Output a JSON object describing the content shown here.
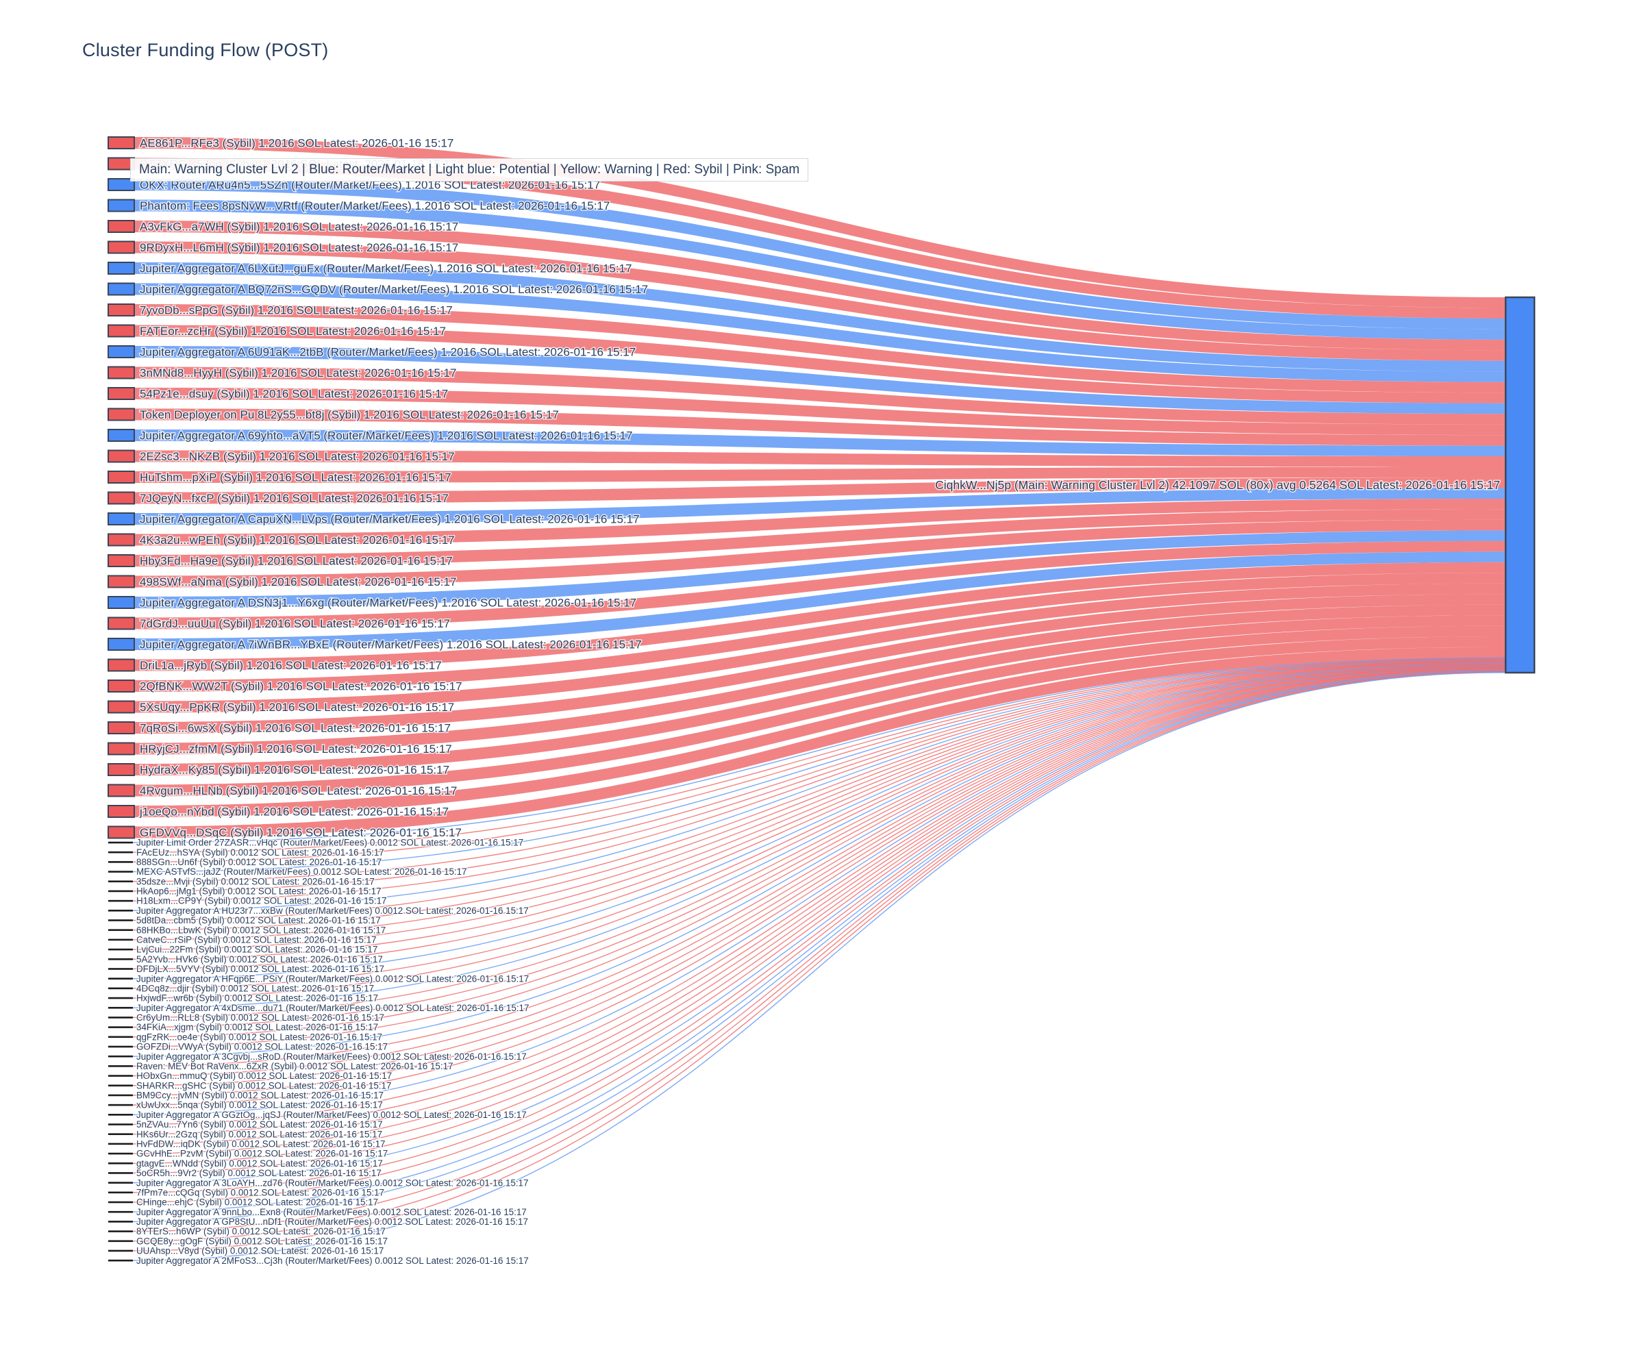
{
  "title": "Cluster Funding Flow (POST)",
  "annotation": "Main: Warning Cluster Lvl 2  |  Blue: Router/Market | Light blue: Potential | Yellow: Warning | Red: Sybil | Pink: Spam",
  "colors": {
    "sybil_node": "#ec5a5c",
    "router_node": "#4a8af4",
    "sybil_link": "rgba(236,90,92,0.75)",
    "router_link": "rgba(74,138,244,0.75)",
    "small_sybil_link": "rgba(240,110,110,0.85)",
    "small_router_link": "rgba(110,160,245,0.9)",
    "node_border": "#3a4556",
    "small_node": "#1c1c1c",
    "text": "#2a3f5f"
  },
  "chart_data": {
    "type": "sankey",
    "unit": "SOL",
    "target": {
      "label": "CiqhkW...Nj5p (Main: Warning Cluster Lvl 2) 42.1097 SOL (80x) avg 0.5264 SOL Latest: 2026-01-16 15:17",
      "total_sol": 42.1097,
      "tx_count": 80,
      "avg_sol": 0.5264
    },
    "sources": [
      {
        "label": "AE861P...RFe3 (Sybil) 1.2016 SOL Latest: 2026-01-16 15:17",
        "type": "sybil",
        "value": 1.2016
      },
      {
        "label": "DT7XRG...5Jqg (Sybil) 1.2016 SOL Latest: 2026-01-16 15:17",
        "type": "sybil",
        "value": 1.2016
      },
      {
        "label": "OKX: Router ARu4n5...5SZn (Router/Market/Fees) 1.2016 SOL Latest: 2026-01-16 15:17",
        "type": "router",
        "value": 1.2016
      },
      {
        "label": "Phantom: Fees 8psNvW...VRtf (Router/Market/Fees) 1.2016 SOL Latest: 2026-01-16 15:17",
        "type": "router",
        "value": 1.2016
      },
      {
        "label": "A3vFkG...a7WH (Sybil) 1.2016 SOL Latest: 2026-01-16 15:17",
        "type": "sybil",
        "value": 1.2016
      },
      {
        "label": "9RDyxH...L6mH (Sybil) 1.2016 SOL Latest: 2026-01-16 15:17",
        "type": "sybil",
        "value": 1.2016
      },
      {
        "label": "Jupiter Aggregator A 6LXutJ...guFx (Router/Market/Fees) 1.2016 SOL Latest: 2026-01-16 15:17",
        "type": "router",
        "value": 1.2016
      },
      {
        "label": "Jupiter Aggregator A BQ72nS...GQDV (Router/Market/Fees) 1.2016 SOL Latest: 2026-01-16 15:17",
        "type": "router",
        "value": 1.2016
      },
      {
        "label": "7yvoDb...sPpG (Sybil) 1.2016 SOL Latest: 2026-01-16 15:17",
        "type": "sybil",
        "value": 1.2016
      },
      {
        "label": "FATEor...zcHr (Sybil) 1.2016 SOL Latest: 2026-01-16 15:17",
        "type": "sybil",
        "value": 1.2016
      },
      {
        "label": "Jupiter Aggregator A 6U91aK...2tbB (Router/Market/Fees) 1.2016 SOL Latest: 2026-01-16 15:17",
        "type": "router",
        "value": 1.2016
      },
      {
        "label": "3nMNd8...HyyH (Sybil) 1.2016 SOL Latest: 2026-01-16 15:17",
        "type": "sybil",
        "value": 1.2016
      },
      {
        "label": "54Pz1e...dsuy (Sybil) 1.2016 SOL Latest: 2026-01-16 15:17",
        "type": "sybil",
        "value": 1.2016
      },
      {
        "label": "Token Deployer on Pu 8L2y55...bt8j (Sybil) 1.2016 SOL Latest: 2026-01-16 15:17",
        "type": "sybil",
        "value": 1.2016
      },
      {
        "label": "Jupiter Aggregator A 69yhto...aVT5 (Router/Market/Fees) 1.2016 SOL Latest: 2026-01-16 15:17",
        "type": "router",
        "value": 1.2016
      },
      {
        "label": "2EZsc3...NKZB (Sybil) 1.2016 SOL Latest: 2026-01-16 15:17",
        "type": "sybil",
        "value": 1.2016
      },
      {
        "label": "HuTshm...pXiP (Sybil) 1.2016 SOL Latest: 2026-01-16 15:17",
        "type": "sybil",
        "value": 1.2016
      },
      {
        "label": "7JQeyN...fxcP (Sybil) 1.2016 SOL Latest: 2026-01-16 15:17",
        "type": "sybil",
        "value": 1.2016
      },
      {
        "label": "Jupiter Aggregator A CapuXN...LVps (Router/Market/Fees) 1.2016 SOL Latest: 2026-01-16 15:17",
        "type": "router",
        "value": 1.2016
      },
      {
        "label": "4K3a2u...wPEh (Sybil) 1.2016 SOL Latest: 2026-01-16 15:17",
        "type": "sybil",
        "value": 1.2016
      },
      {
        "label": "Hby3Fd...Ha9e (Sybil) 1.2016 SOL Latest: 2026-01-16 15:17",
        "type": "sybil",
        "value": 1.2016
      },
      {
        "label": "498SWf...aNma (Sybil) 1.2016 SOL Latest: 2026-01-16 15:17",
        "type": "sybil",
        "value": 1.2016
      },
      {
        "label": "Jupiter Aggregator A DSN3j1...Y6xg (Router/Market/Fees) 1.2016 SOL Latest: 2026-01-16 15:17",
        "type": "router",
        "value": 1.2016
      },
      {
        "label": "7dGrdJ...uuUu (Sybil) 1.2016 SOL Latest: 2026-01-16 15:17",
        "type": "sybil",
        "value": 1.2016
      },
      {
        "label": "Jupiter Aggregator A 7iWnBR...YBxE (Router/Market/Fees) 1.2016 SOL Latest: 2026-01-16 15:17",
        "type": "router",
        "value": 1.2016
      },
      {
        "label": "DriL1a...jRyb (Sybil) 1.2016 SOL Latest: 2026-01-16 15:17",
        "type": "sybil",
        "value": 1.2016
      },
      {
        "label": "2QfBNK...WW2T (Sybil) 1.2016 SOL Latest: 2026-01-16 15:17",
        "type": "sybil",
        "value": 1.2016
      },
      {
        "label": "5XsUqy...PpKR (Sybil) 1.2016 SOL Latest: 2026-01-16 15:17",
        "type": "sybil",
        "value": 1.2016
      },
      {
        "label": "7qRoSi...6wsX (Sybil) 1.2016 SOL Latest: 2026-01-16 15:17",
        "type": "sybil",
        "value": 1.2016
      },
      {
        "label": "HRyjCJ...zfmM (Sybil) 1.2016 SOL Latest: 2026-01-16 15:17",
        "type": "sybil",
        "value": 1.2016
      },
      {
        "label": "HydraX...Ky85 (Sybil) 1.2016 SOL Latest: 2026-01-16 15:17",
        "type": "sybil",
        "value": 1.2016
      },
      {
        "label": "4Rvgum...HLNb (Sybil) 1.2016 SOL Latest: 2026-01-16 15:17",
        "type": "sybil",
        "value": 1.2016
      },
      {
        "label": "j1oeQo...nYbd (Sybil) 1.2016 SOL Latest: 2026-01-16 15:17",
        "type": "sybil",
        "value": 1.2016
      },
      {
        "label": "GFDVVq...DSqC (Sybil) 1.2016 SOL Latest: 2026-01-16 15:17",
        "type": "sybil",
        "value": 1.2016
      },
      {
        "label": "Jupiter Limit Order 27ZASR...vHqc (Router/Market/Fees) 0.0012 SOL Latest: 2026-01-16 15:17",
        "type": "router",
        "value": 0.0012
      },
      {
        "label": "FAcEUz...hSYA (Sybil) 0.0012 SOL Latest: 2026-01-16 15:17",
        "type": "sybil",
        "value": 0.0012
      },
      {
        "label": "888SGn...Un6f (Sybil) 0.0012 SOL Latest: 2026-01-16 15:17",
        "type": "sybil",
        "value": 0.0012
      },
      {
        "label": "MEXC ASTvfS...jaJZ (Router/Market/Fees) 0.0012 SOL Latest: 2026-01-16 15:17",
        "type": "router",
        "value": 0.0012
      },
      {
        "label": "35dsze...Mvji (Sybil) 0.0012 SOL Latest: 2026-01-16 15:17",
        "type": "sybil",
        "value": 0.0012
      },
      {
        "label": "HkAop6...jMg1 (Sybil) 0.0012 SOL Latest: 2026-01-16 15:17",
        "type": "sybil",
        "value": 0.0012
      },
      {
        "label": "H18Lxm...CP9Y (Sybil) 0.0012 SOL Latest: 2026-01-16 15:17",
        "type": "sybil",
        "value": 0.0012
      },
      {
        "label": "Jupiter Aggregator A HU23r7...xxBw (Router/Market/Fees) 0.0012 SOL Latest: 2026-01-16 15:17",
        "type": "router",
        "value": 0.0012
      },
      {
        "label": "5d8tDa...cbm5 (Sybil) 0.0012 SOL Latest: 2026-01-16 15:17",
        "type": "sybil",
        "value": 0.0012
      },
      {
        "label": "68HKBo...LbwK (Sybil) 0.0012 SOL Latest: 2026-01-16 15:17",
        "type": "sybil",
        "value": 0.0012
      },
      {
        "label": "CatveC...rSiP (Sybil) 0.0012 SOL Latest: 2026-01-16 15:17",
        "type": "sybil",
        "value": 0.0012
      },
      {
        "label": "LvjCui...22Fm (Sybil) 0.0012 SOL Latest: 2026-01-16 15:17",
        "type": "sybil",
        "value": 0.0012
      },
      {
        "label": "5A2Yvb...HVk6 (Sybil) 0.0012 SOL Latest: 2026-01-16 15:17",
        "type": "sybil",
        "value": 0.0012
      },
      {
        "label": "DFDjLX...5VYV (Sybil) 0.0012 SOL Latest: 2026-01-16 15:17",
        "type": "sybil",
        "value": 0.0012
      },
      {
        "label": "Jupiter Aggregator A HFqp6E...PSiY (Router/Market/Fees) 0.0012 SOL Latest: 2026-01-16 15:17",
        "type": "router",
        "value": 0.0012
      },
      {
        "label": "4DCq8z...djir (Sybil) 0.0012 SOL Latest: 2026-01-16 15:17",
        "type": "sybil",
        "value": 0.0012
      },
      {
        "label": "HxjwdF...wr6b (Sybil) 0.0012 SOL Latest: 2026-01-16 15:17",
        "type": "sybil",
        "value": 0.0012
      },
      {
        "label": "Jupiter Aggregator A 4xDsme...du71 (Router/Market/Fees) 0.0012 SOL Latest: 2026-01-16 15:17",
        "type": "router",
        "value": 0.0012
      },
      {
        "label": "Cr6yUm...RLL8 (Sybil) 0.0012 SOL Latest: 2026-01-16 15:17",
        "type": "sybil",
        "value": 0.0012
      },
      {
        "label": "34FKiA...xjgm (Sybil) 0.0012 SOL Latest: 2026-01-16 15:17",
        "type": "sybil",
        "value": 0.0012
      },
      {
        "label": "qgFzRK...oe4e (Sybil) 0.0012 SOL Latest: 2026-01-16 15:17",
        "type": "sybil",
        "value": 0.0012
      },
      {
        "label": "GOFZDi...VWyA (Sybil) 0.0012 SOL Latest: 2026-01-16 15:17",
        "type": "sybil",
        "value": 0.0012
      },
      {
        "label": "Jupiter Aggregator A 3Cgvbj...sRoD (Router/Market/Fees) 0.0012 SOL Latest: 2026-01-16 15:17",
        "type": "router",
        "value": 0.0012
      },
      {
        "label": "Raven: MEV Bot RaVenx...6ZxR (Sybil) 0.0012 SOL Latest: 2026-01-16 15:17",
        "type": "sybil",
        "value": 0.0012
      },
      {
        "label": "HObxGn...mmuQ (Sybil) 0.0012 SOL Latest: 2026-01-16 15:17",
        "type": "sybil",
        "value": 0.0012
      },
      {
        "label": "SHARKR...gSHC (Sybil) 0.0012 SOL Latest: 2026-01-16 15:17",
        "type": "sybil",
        "value": 0.0012
      },
      {
        "label": "BM9Ccy...jvMN (Sybil) 0.0012 SOL Latest: 2026-01-16 15:17",
        "type": "sybil",
        "value": 0.0012
      },
      {
        "label": "xUwUxx...5nqa (Sybil) 0.0012 SOL Latest: 2026-01-16 15:17",
        "type": "sybil",
        "value": 0.0012
      },
      {
        "label": "Jupiter Aggregator A GGztOg...jqSJ (Router/Market/Fees) 0.0012 SOL Latest: 2026-01-16 15:17",
        "type": "router",
        "value": 0.0012
      },
      {
        "label": "5nZVAu...7Yn6 (Sybil) 0.0012 SOL Latest: 2026-01-16 15:17",
        "type": "sybil",
        "value": 0.0012
      },
      {
        "label": "HKs6Ur...2Gzq (Sybil) 0.0012 SOL Latest: 2026-01-16 15:17",
        "type": "sybil",
        "value": 0.0012
      },
      {
        "label": "HvFdDW...iqDK (Sybil) 0.0012 SOL Latest: 2026-01-16 15:17",
        "type": "sybil",
        "value": 0.0012
      },
      {
        "label": "GCvHhE...PzvM (Sybil) 0.0012 SOL Latest: 2026-01-16 15:17",
        "type": "sybil",
        "value": 0.0012
      },
      {
        "label": "gtagvE...WNdd (Sybil) 0.0012 SOL Latest: 2026-01-16 15:17",
        "type": "sybil",
        "value": 0.0012
      },
      {
        "label": "5oCR5h...9Vr2 (Sybil) 0.0012 SOL Latest: 2026-01-16 15:17",
        "type": "sybil",
        "value": 0.0012
      },
      {
        "label": "Jupiter Aggregator A 3LoAYH...zd76 (Router/Market/Fees) 0.0012 SOL Latest: 2026-01-16 15:17",
        "type": "router",
        "value": 0.0012
      },
      {
        "label": "7fPm7e...cQGq (Sybil) 0.0012 SOL Latest: 2026-01-16 15:17",
        "type": "sybil",
        "value": 0.0012
      },
      {
        "label": "CHinge...ehjC (Sybil) 0.0012 SOL Latest: 2026-01-16 15:17",
        "type": "sybil",
        "value": 0.0012
      },
      {
        "label": "Jupiter Aggregator A 9nnLbo...Exn8 (Router/Market/Fees) 0.0012 SOL Latest: 2026-01-16 15:17",
        "type": "router",
        "value": 0.0012
      },
      {
        "label": "Jupiter Aggregator A GP8StU...nDf1 (Router/Market/Fees) 0.0012 SOL Latest: 2026-01-16 15:17",
        "type": "router",
        "value": 0.0012
      },
      {
        "label": "8YTErS...h6WP (Sybil) 0.0012 SOL Latest: 2026-01-16 15:17",
        "type": "sybil",
        "value": 0.0012
      },
      {
        "label": "GCQE8y...gOgF (Sybil) 0.0012 SOL Latest: 2026-01-16 15:17",
        "type": "sybil",
        "value": 0.0012
      },
      {
        "label": "UUAhsp...V8yd (Sybil) 0.0012 SOL Latest: 2026-01-16 15:17",
        "type": "sybil",
        "value": 0.0012
      },
      {
        "label": "Jupiter Aggregator A 2MFoS3...Cj3h (Router/Market/Fees) 0.0012 SOL Latest: 2026-01-16 15:17",
        "type": "router",
        "value": 0.0012
      }
    ]
  }
}
